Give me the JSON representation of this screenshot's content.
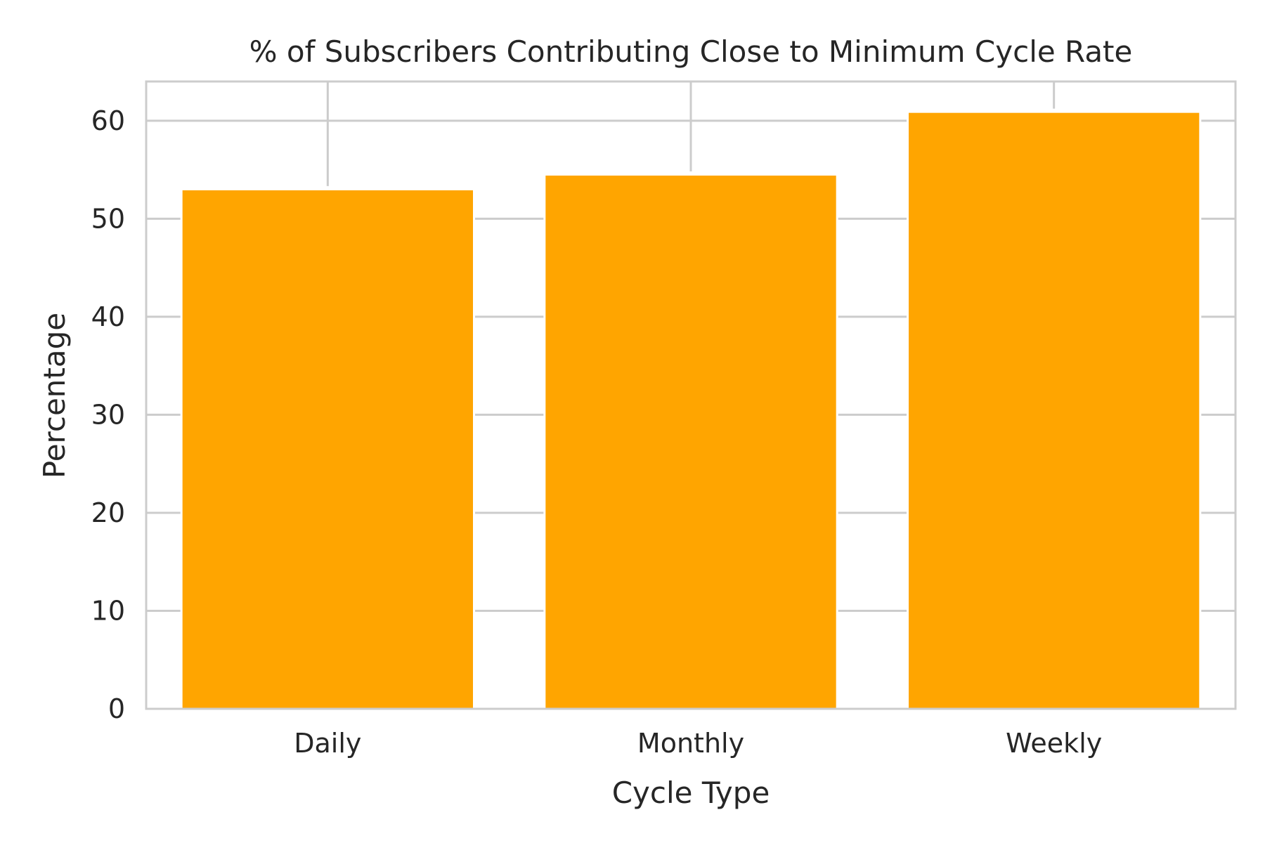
{
  "chart_data": {
    "type": "bar",
    "title": "% of Subscribers Contributing Close to Minimum Cycle Rate",
    "xlabel": "Cycle Type",
    "ylabel": "Percentage",
    "categories": [
      "Daily",
      "Monthly",
      "Weekly"
    ],
    "values": [
      52.9,
      54.4,
      60.8
    ],
    "ylim": [
      0,
      64
    ],
    "yticks": [
      0,
      10,
      20,
      30,
      40,
      50,
      60
    ],
    "grid": true,
    "bar_color": "#ffa500",
    "grid_color": "#cccccc"
  }
}
